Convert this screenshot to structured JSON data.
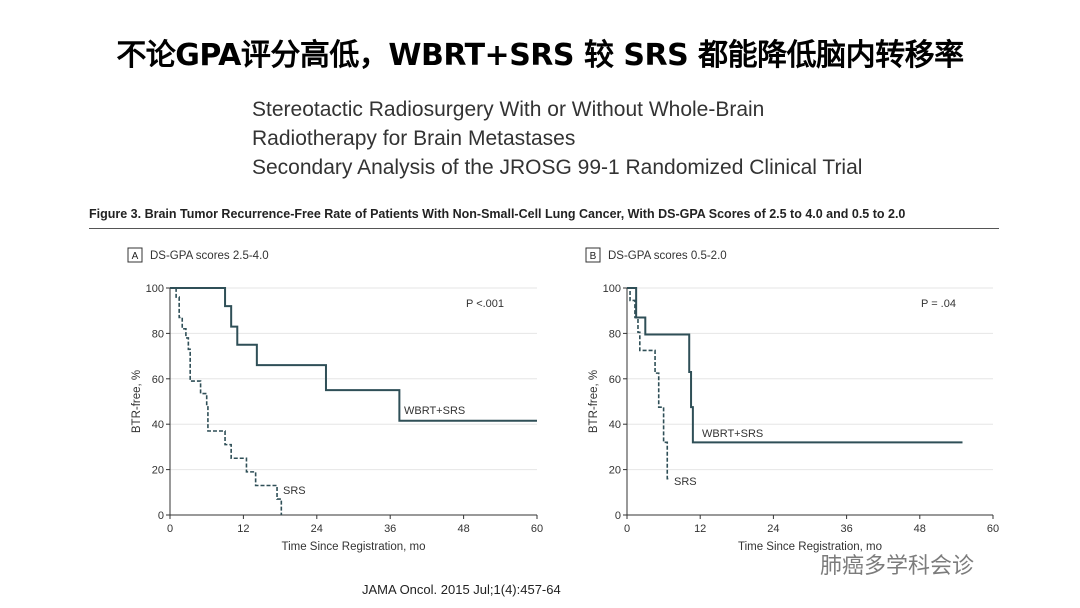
{
  "slide_title": "不论GPA评分高低，WBRT+SRS 较 SRS 都能降低脑内转移率",
  "paper": {
    "title_line1": "Stereotactic Radiosurgery With or Without Whole-Brain",
    "title_line2": "Radiotherapy for Brain Metastases",
    "subtitle": "Secondary Analysis of the JROSG 99-1 Randomized Clinical Trial"
  },
  "figure_caption": "Figure 3. Brain Tumor Recurrence-Free Rate of Patients With Non-Small-Cell Lung Cancer, With DS-GPA Scores of 2.5 to 4.0 and 0.5 to 2.0",
  "citation": "JAMA Oncol. 2015 Jul;1(4):457-64",
  "watermark": "肺癌多学科会诊",
  "colors": {
    "line": "#2f4f57",
    "grid": "#e6e6e6"
  },
  "chart_data": [
    {
      "type": "line",
      "panel": "A",
      "title": "DS-GPA scores 2.5-4.0",
      "xlabel": "Time Since Registration, mo",
      "ylabel": "BTR-free, %",
      "xlim": [
        0,
        60
      ],
      "ylim": [
        0,
        100
      ],
      "xticks": [
        0,
        12,
        24,
        36,
        48,
        60
      ],
      "yticks": [
        0,
        20,
        40,
        60,
        80,
        100
      ],
      "annotation": "P <.001",
      "series": [
        {
          "name": "WBRT+SRS",
          "style": "solid",
          "steps": [
            [
              0,
              100
            ],
            [
              9,
              92
            ],
            [
              10,
              83
            ],
            [
              11,
              75
            ],
            [
              14.2,
              66
            ],
            [
              25.5,
              55
            ],
            [
              37.5,
              41.5
            ],
            [
              60,
              41.5
            ]
          ]
        },
        {
          "name": "SRS",
          "style": "dashed",
          "steps": [
            [
              0,
              100
            ],
            [
              1,
              96
            ],
            [
              1.5,
              87
            ],
            [
              2,
              82
            ],
            [
              2.6,
              78
            ],
            [
              3,
              73
            ],
            [
              3.3,
              59
            ],
            [
              5,
              53.5
            ],
            [
              6,
              48
            ],
            [
              6.2,
              37
            ],
            [
              9,
              31
            ],
            [
              10,
              25
            ],
            [
              12.5,
              19
            ],
            [
              14,
              13
            ],
            [
              17.5,
              7
            ],
            [
              18.2,
              0
            ]
          ]
        }
      ]
    },
    {
      "type": "line",
      "panel": "B",
      "title": "DS-GPA scores 0.5-2.0",
      "xlabel": "Time Since Registration, mo",
      "ylabel": "BTR-free, %",
      "xlim": [
        0,
        60
      ],
      "ylim": [
        0,
        100
      ],
      "xticks": [
        0,
        12,
        24,
        36,
        48,
        60
      ],
      "yticks": [
        0,
        20,
        40,
        60,
        80,
        100
      ],
      "annotation": "P = .04",
      "series": [
        {
          "name": "WBRT+SRS",
          "style": "solid",
          "steps": [
            [
              0,
              100
            ],
            [
              1.5,
              87
            ],
            [
              3,
              79.5
            ],
            [
              10.2,
              63
            ],
            [
              10.5,
              47.5
            ],
            [
              10.8,
              32
            ],
            [
              55,
              32
            ]
          ]
        },
        {
          "name": "SRS",
          "style": "dashed",
          "steps": [
            [
              0,
              100
            ],
            [
              0.5,
              94.5
            ],
            [
              1.3,
              87
            ],
            [
              1.8,
              80.5
            ],
            [
              2.1,
              72.5
            ],
            [
              4.6,
              62.5
            ],
            [
              5.2,
              47.5
            ],
            [
              6,
              32
            ],
            [
              6.6,
              16
            ],
            [
              7,
              16
            ]
          ]
        }
      ]
    }
  ]
}
